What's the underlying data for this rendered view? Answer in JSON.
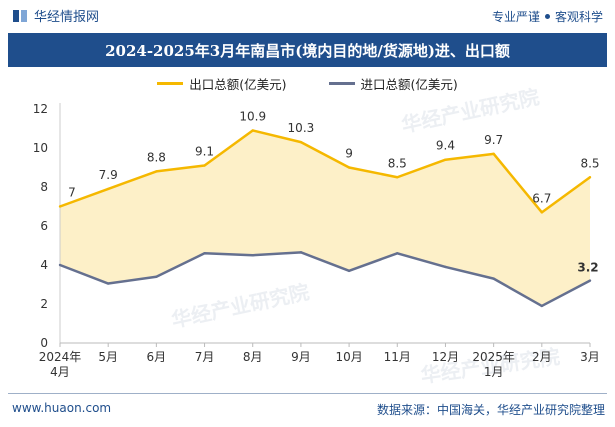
{
  "header": {
    "brand": "华经情报网",
    "slogan_left": "专业严谨",
    "slogan_right": "客观科学"
  },
  "title": "2024-2025年3月年南昌市(境内目的地/货源地)进、出口额",
  "colors": {
    "export": "#f5b800",
    "import": "#65708f",
    "fill": "#fdf0c8",
    "brand": "#1f4e8c"
  },
  "chart_data": {
    "type": "line",
    "categories": [
      "2024年\n4月",
      "5月",
      "6月",
      "7月",
      "8月",
      "9月",
      "10月",
      "11月",
      "12月",
      "2025年\n1月",
      "2月",
      "3月"
    ],
    "series": [
      {
        "name": "出口总额(亿美元)",
        "values": [
          7,
          7.9,
          8.8,
          9.1,
          10.9,
          10.3,
          9,
          8.5,
          9.4,
          9.7,
          6.7,
          8.5
        ],
        "labels": [
          "7",
          "7.9",
          "8.8",
          "9.1",
          "10.9",
          "10.3",
          "9",
          "8.5",
          "9.4",
          "9.7",
          "6.7",
          "8.5"
        ]
      },
      {
        "name": "进口总额(亿美元)",
        "values": [
          4.0,
          3.05,
          3.4,
          4.6,
          4.5,
          4.65,
          3.7,
          4.6,
          3.9,
          3.3,
          1.9,
          3.2
        ],
        "labels": [
          "",
          "",
          "",
          "",
          "",
          "",
          "",
          "",
          "",
          "",
          "",
          "3.2"
        ]
      }
    ],
    "ylim": [
      0,
      12
    ],
    "yticks": [
      "0",
      "2",
      "4",
      "6",
      "8",
      "10",
      "12"
    ],
    "grid": false,
    "legend": "top-center"
  },
  "footer": {
    "website": "www.huaon.com",
    "source": "数据来源：中国海关，华经产业研究院整理"
  },
  "watermark": {
    "text": "华经产业研究院",
    "url": "www.huaon.com"
  }
}
